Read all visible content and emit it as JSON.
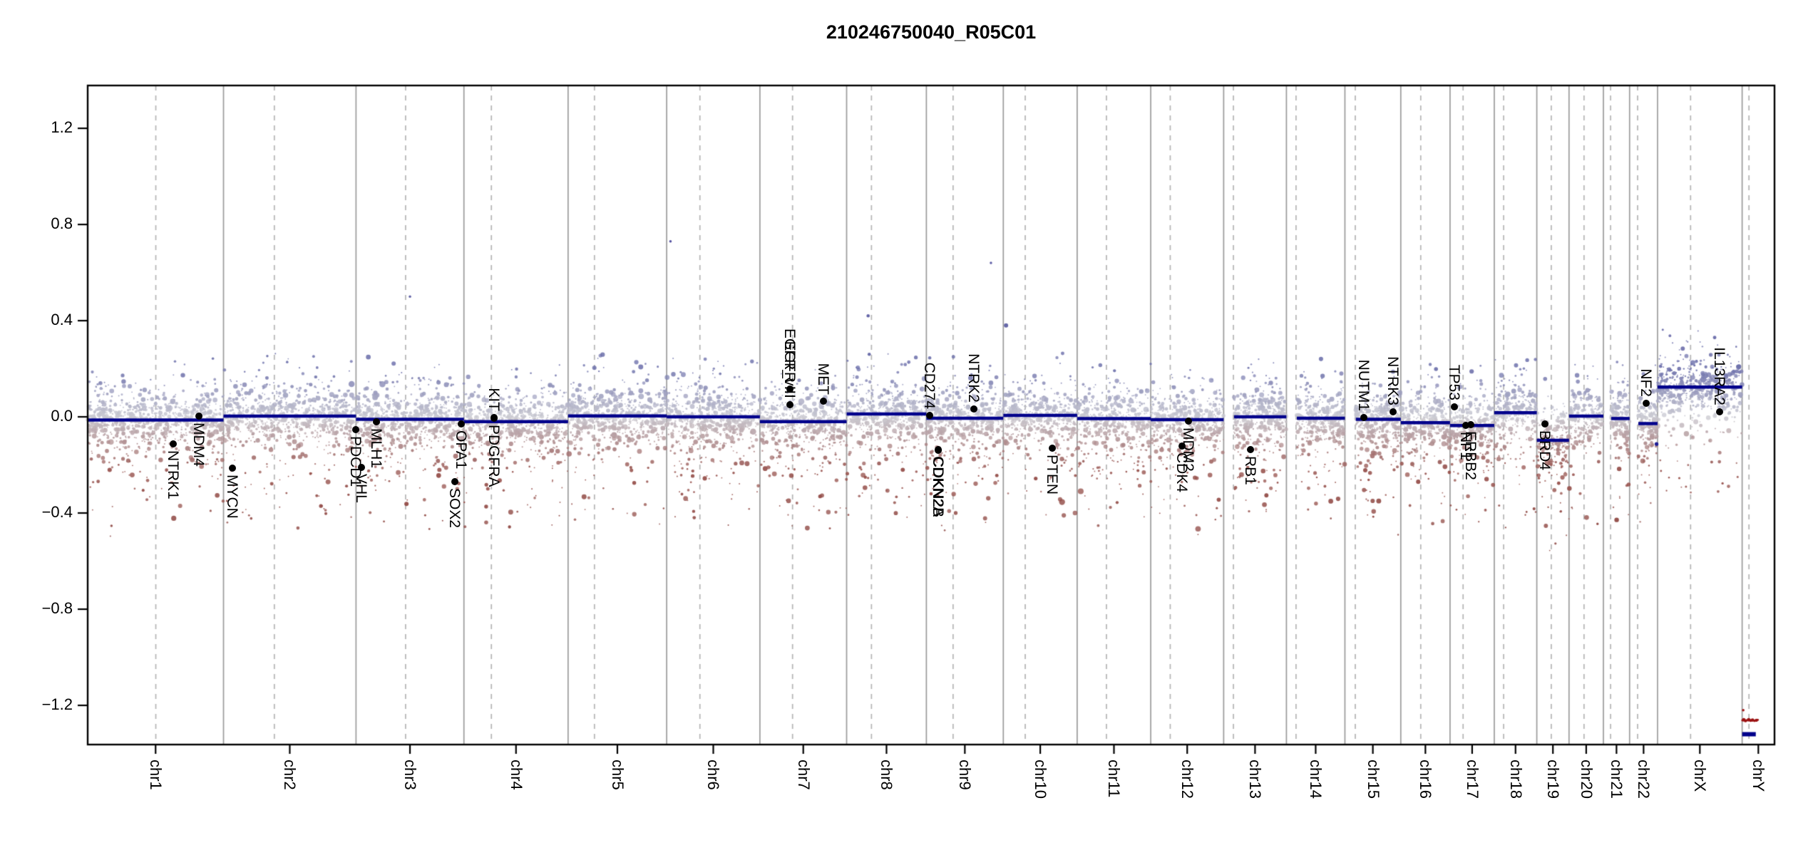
{
  "title": "210246750040_R05C01",
  "colors": {
    "segment": "#00008b",
    "gain_point": "#6e71ac",
    "loss_point": "#96504b",
    "neutral_point": "#cacad2",
    "deep_loss_point": "#9b1111",
    "boundary_line": "#9b9b9b",
    "centromere_line": "#b4b4b4",
    "axis": "#000000",
    "background": "#ffffff"
  },
  "chart_data": {
    "type": "scatter",
    "title": "210246750040_R05C01",
    "xlabel": "",
    "ylabel": "",
    "x_axis_kind": "genomic position, chr1-chrY (proportional to chromosome length, hg19)",
    "grid": "vertical chromosome boundaries (solid) and centromeres (dashed)",
    "ylim": [
      -1.363,
      1.378
    ],
    "y_ticks": [
      {
        "v": 1.2,
        "label": "1.2"
      },
      {
        "v": 0.8,
        "label": "0.8"
      },
      {
        "v": 0.4,
        "label": "0.4"
      },
      {
        "v": 0.0,
        "label": "0.0"
      },
      {
        "v": -0.4,
        "label": "−0.4"
      },
      {
        "v": -0.8,
        "label": "−0.8"
      },
      {
        "v": -1.2,
        "label": "−1.2"
      }
    ],
    "points_per_mb": 3.6,
    "chromosomes": [
      {
        "name": "chr1",
        "length_mb": 249.25,
        "centromere_mb": 125.0,
        "start_gap_mb": 0,
        "segment": -0.013
      },
      {
        "name": "chr2",
        "length_mb": 243.2,
        "centromere_mb": 93.3,
        "start_gap_mb": 0,
        "segment": 0.003
      },
      {
        "name": "chr3",
        "length_mb": 198.02,
        "centromere_mb": 91.0,
        "start_gap_mb": 0,
        "segment": -0.01
      },
      {
        "name": "chr4",
        "length_mb": 191.15,
        "centromere_mb": 50.4,
        "start_gap_mb": 0,
        "segment": -0.02
      },
      {
        "name": "chr5",
        "length_mb": 180.92,
        "centromere_mb": 48.4,
        "start_gap_mb": 0,
        "segment": 0.004
      },
      {
        "name": "chr6",
        "length_mb": 171.12,
        "centromere_mb": 61.0,
        "start_gap_mb": 0,
        "segment": 0.0
      },
      {
        "name": "chr7",
        "length_mb": 159.14,
        "centromere_mb": 59.9,
        "start_gap_mb": 0,
        "segment": -0.02
      },
      {
        "name": "chr8",
        "length_mb": 146.36,
        "centromere_mb": 45.6,
        "start_gap_mb": 0,
        "segment": 0.012
      },
      {
        "name": "chr9",
        "length_mb": 141.21,
        "centromere_mb": 49.0,
        "start_gap_mb": 0,
        "segment": -0.006
      },
      {
        "name": "chr10",
        "length_mb": 135.53,
        "centromere_mb": 40.2,
        "start_gap_mb": 0,
        "segment": 0.006
      },
      {
        "name": "chr11",
        "length_mb": 135.01,
        "centromere_mb": 53.7,
        "start_gap_mb": 0,
        "segment": -0.007
      },
      {
        "name": "chr12",
        "length_mb": 133.85,
        "centromere_mb": 35.8,
        "start_gap_mb": 0,
        "segment": -0.012
      },
      {
        "name": "chr13",
        "length_mb": 115.17,
        "centromere_mb": 17.9,
        "start_gap_mb": 19.0,
        "segment": 0.0
      },
      {
        "name": "chr14",
        "length_mb": 107.35,
        "centromere_mb": 17.6,
        "start_gap_mb": 19.1,
        "segment": -0.006
      },
      {
        "name": "chr15",
        "length_mb": 102.53,
        "centromere_mb": 19.0,
        "start_gap_mb": 20.0,
        "segment": -0.01
      },
      {
        "name": "chr16",
        "length_mb": 90.35,
        "centromere_mb": 36.6,
        "start_gap_mb": 0,
        "segment": -0.024
      },
      {
        "name": "chr17",
        "length_mb": 81.2,
        "centromere_mb": 24.0,
        "start_gap_mb": 0,
        "segment": -0.036
      },
      {
        "name": "chr18",
        "length_mb": 78.08,
        "centromere_mb": 17.2,
        "start_gap_mb": 0,
        "segment": 0.017
      },
      {
        "name": "chr19",
        "length_mb": 59.13,
        "centromere_mb": 26.5,
        "start_gap_mb": 0,
        "segment": -0.098
      },
      {
        "name": "chr20",
        "length_mb": 63.03,
        "centromere_mb": 27.5,
        "start_gap_mb": 0,
        "segment": 0.003
      },
      {
        "name": "chr21",
        "length_mb": 48.13,
        "centromere_mb": 13.2,
        "start_gap_mb": 14.3,
        "segment": -0.007
      },
      {
        "name": "chr22",
        "length_mb": 51.3,
        "centromere_mb": 14.7,
        "start_gap_mb": 16.0,
        "segment": -0.028
      },
      {
        "name": "chrX",
        "length_mb": 155.27,
        "centromere_mb": 60.6,
        "start_gap_mb": 0,
        "segment": 0.124
      },
      {
        "name": "chrY",
        "length_mb": 59.37,
        "centromere_mb": 12.5,
        "start_gap_mb": 0,
        "segment": -1.32,
        "points_per_mb": 0,
        "seg_end_mb": 25,
        "seg_lw": 6
      }
    ],
    "genes": [
      {
        "name": "NTRK1",
        "chr": "chr1",
        "mb": 156.8,
        "value": -0.113,
        "side": "below"
      },
      {
        "name": "MDM4",
        "chr": "chr1",
        "mb": 204.5,
        "value": 0.003,
        "side": "below"
      },
      {
        "name": "MYCN",
        "chr": "chr2",
        "mb": 16.1,
        "value": -0.213,
        "side": "below"
      },
      {
        "name": "PDCD1",
        "chr": "chr2",
        "mb": 242.8,
        "value": -0.053,
        "side": "below"
      },
      {
        "name": "VHL",
        "chr": "chr3",
        "mb": 10.2,
        "value": -0.21,
        "side": "below"
      },
      {
        "name": "MLH1",
        "chr": "chr3",
        "mb": 37.0,
        "value": -0.021,
        "side": "below"
      },
      {
        "name": "SOX2",
        "chr": "chr3",
        "mb": 181.4,
        "value": -0.27,
        "side": "below"
      },
      {
        "name": "OPA1",
        "chr": "chr3",
        "mb": 193.3,
        "value": -0.03,
        "side": "below"
      },
      {
        "name": "PDGFRA",
        "chr": "chr4",
        "mb": 55.1,
        "value": -0.005,
        "side": "below"
      },
      {
        "name": "KIT",
        "chr": "chr4",
        "mb": 55.6,
        "value": -0.003,
        "side": "above"
      },
      {
        "name": "EGFR",
        "chr": "chr7",
        "mb": 55.1,
        "value": 0.115,
        "side": "above"
      },
      {
        "name": "EGFR_vIII",
        "chr": "chr7",
        "mb": 55.3,
        "value": 0.05,
        "side": "above"
      },
      {
        "name": "MET",
        "chr": "chr7",
        "mb": 116.3,
        "value": 0.065,
        "side": "above"
      },
      {
        "name": "CD274",
        "chr": "chr9",
        "mb": 5.5,
        "value": 0.005,
        "side": "above"
      },
      {
        "name": "CDKN2A",
        "chr": "chr9",
        "mb": 21.9,
        "value": -0.136,
        "side": "below"
      },
      {
        "name": "CDKN2B",
        "chr": "chr9",
        "mb": 22.1,
        "value": -0.14,
        "side": "below"
      },
      {
        "name": "NTRK2",
        "chr": "chr9",
        "mb": 87.3,
        "value": 0.033,
        "side": "above"
      },
      {
        "name": "PTEN",
        "chr": "chr10",
        "mb": 89.7,
        "value": -0.13,
        "side": "below"
      },
      {
        "name": "CDK4",
        "chr": "chr12",
        "mb": 58.1,
        "value": -0.121,
        "side": "below"
      },
      {
        "name": "MDM2",
        "chr": "chr12",
        "mb": 69.2,
        "value": -0.017,
        "side": "below"
      },
      {
        "name": "RB1",
        "chr": "chr13",
        "mb": 48.9,
        "value": -0.136,
        "side": "below"
      },
      {
        "name": "NUTM1",
        "chr": "chr15",
        "mb": 34.6,
        "value": -0.003,
        "side": "above"
      },
      {
        "name": "NTRK3",
        "chr": "chr15",
        "mb": 88.4,
        "value": 0.021,
        "side": "above"
      },
      {
        "name": "TP53",
        "chr": "chr17",
        "mb": 7.6,
        "value": 0.042,
        "side": "above"
      },
      {
        "name": "NF1",
        "chr": "chr17",
        "mb": 29.5,
        "value": -0.035,
        "side": "below"
      },
      {
        "name": "ERBB2",
        "chr": "chr17",
        "mb": 37.9,
        "value": -0.033,
        "side": "below"
      },
      {
        "name": "BRD4",
        "chr": "chr19",
        "mb": 15.3,
        "value": -0.03,
        "side": "below"
      },
      {
        "name": "NF2",
        "chr": "chr22",
        "mb": 30.0,
        "value": 0.056,
        "side": "above"
      },
      {
        "name": "IL13RA2",
        "chr": "chrX",
        "mb": 114.3,
        "value": 0.021,
        "side": "above"
      }
    ],
    "extra_points": [
      {
        "chr": "chr3",
        "mb": 99.0,
        "value": 0.5,
        "r": 1.7
      },
      {
        "chr": "chr6",
        "mb": 7.0,
        "value": 0.73,
        "r": 1.8
      },
      {
        "chr": "chr8",
        "mb": 39.5,
        "value": 0.42,
        "r": 2.3
      },
      {
        "chr": "chr8",
        "mb": 41.5,
        "value": 0.26,
        "r": 2.3
      },
      {
        "chr": "chr9",
        "mb": 118.5,
        "value": 0.64,
        "r": 1.7
      },
      {
        "chr": "chr10",
        "mb": 5.0,
        "value": 0.38,
        "r": 3.0
      },
      {
        "chr": "chr22",
        "mb": 49.5,
        "value": -0.113,
        "r": 2.6,
        "color": "#1c1c96"
      },
      {
        "chr": "chrY",
        "mb": 2.0,
        "value": -1.22,
        "r": 1.8,
        "color": "#a01515"
      },
      {
        "chr": "chrY",
        "mb": 0.5,
        "value": -1.262,
        "r": 1.6,
        "color": "#9b1111"
      },
      {
        "chr": "chrY",
        "mb": 3.0,
        "value": -1.26,
        "r": 2.4,
        "color": "#9b1111"
      },
      {
        "chr": "chrY",
        "mb": 6.0,
        "value": -1.264,
        "r": 2.2,
        "color": "#9b1111"
      },
      {
        "chr": "chrY",
        "mb": 9.0,
        "value": -1.262,
        "r": 1.6,
        "color": "#9b1111"
      },
      {
        "chr": "chrY",
        "mb": 12.0,
        "value": -1.26,
        "r": 2.4,
        "color": "#9b1111"
      },
      {
        "chr": "chrY",
        "mb": 15.5,
        "value": -1.263,
        "r": 2.0,
        "color": "#9b1111"
      },
      {
        "chr": "chrY",
        "mb": 19.0,
        "value": -1.261,
        "r": 2.4,
        "color": "#9b1111"
      },
      {
        "chr": "chrY",
        "mb": 22.5,
        "value": -1.264,
        "r": 1.8,
        "color": "#9b1111"
      },
      {
        "chr": "chrY",
        "mb": 26.0,
        "value": -1.262,
        "r": 2.2,
        "color": "#9b1111"
      },
      {
        "chr": "chrY",
        "mb": 28.5,
        "value": -1.26,
        "r": 1.6,
        "color": "#9b1111"
      }
    ]
  }
}
